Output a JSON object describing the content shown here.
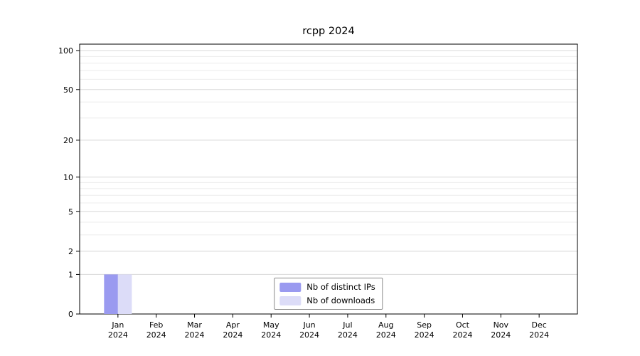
{
  "chart_data": {
    "type": "bar",
    "title": "rcpp 2024",
    "categories": [
      "Jan",
      "Feb",
      "Mar",
      "Apr",
      "May",
      "Jun",
      "Jul",
      "Aug",
      "Sep",
      "Oct",
      "Nov",
      "Dec"
    ],
    "year_label": "2024",
    "yscale": "log1p",
    "yticks": [
      0,
      1,
      2,
      5,
      10,
      20,
      50,
      100
    ],
    "ylim": [
      0,
      100
    ],
    "grid": true,
    "legend_position": "bottom-center",
    "series": [
      {
        "name": "Nb of distinct IPs",
        "color": "#9a9af0",
        "values": [
          1,
          0,
          0,
          0,
          0,
          0,
          0,
          0,
          0,
          0,
          0,
          0
        ]
      },
      {
        "name": "Nb of downloads",
        "color": "#dcdcf8",
        "values": [
          1,
          0,
          0,
          0,
          0,
          0,
          0,
          0,
          0,
          0,
          0,
          0
        ]
      }
    ]
  }
}
